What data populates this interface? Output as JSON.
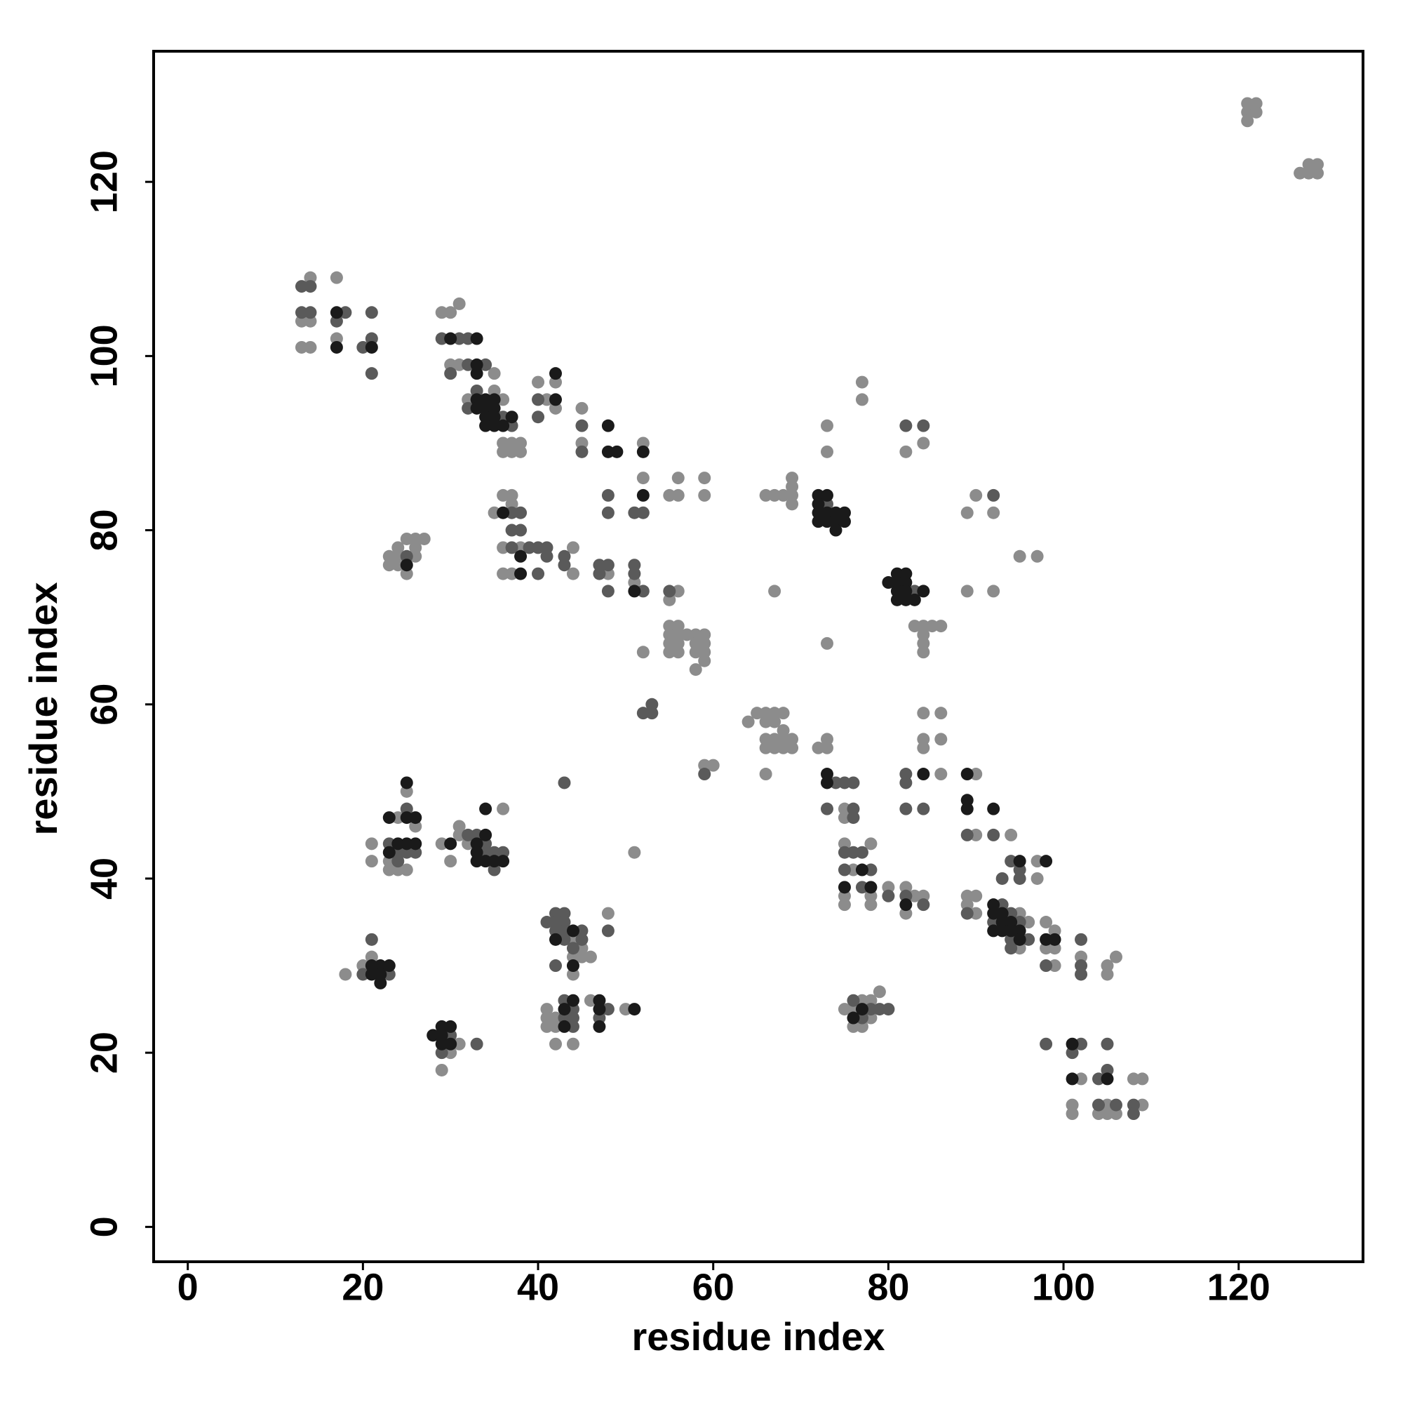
{
  "chart_data": {
    "type": "scatter",
    "x_label": "residue index",
    "y_label": "residue index",
    "xlim": [
      -3.9,
      134.2
    ],
    "ylim": [
      -4,
      135
    ],
    "xticks": [
      0,
      20,
      40,
      60,
      80,
      100,
      120
    ],
    "yticks": [
      0,
      20,
      40,
      60,
      80,
      100,
      120
    ],
    "grid": false,
    "series": [
      {
        "color": "#8c8c8c",
        "x": [
          121,
          121,
          122,
          122,
          121,
          127,
          128,
          128,
          129,
          129,
          14,
          13,
          14,
          13,
          14,
          17,
          17,
          29,
          30,
          31,
          30,
          31,
          35,
          35,
          32,
          36,
          36,
          37,
          38,
          36,
          37,
          38,
          40,
          42,
          41,
          42,
          45,
          45,
          52,
          52,
          55,
          56,
          56,
          59,
          59,
          36,
          37,
          37,
          35,
          36,
          38,
          44,
          36,
          37,
          44,
          48,
          51,
          56,
          55,
          52,
          24,
          24,
          25,
          23,
          23,
          25,
          26,
          26,
          26,
          27,
          24,
          55,
          56,
          55,
          56,
          55,
          56,
          55,
          56,
          57,
          58,
          59,
          58,
          59,
          58,
          59,
          59,
          58,
          59,
          60,
          64,
          65,
          66,
          67,
          68,
          66,
          67,
          66,
          67,
          68,
          69,
          66,
          67,
          68,
          69,
          66,
          68,
          66,
          67,
          68,
          69,
          69,
          69,
          69,
          67,
          73,
          73,
          73,
          77,
          77,
          83,
          84,
          85,
          86,
          84,
          84,
          84,
          82,
          84,
          89,
          90,
          92,
          89,
          92,
          95,
          97,
          84,
          86,
          84,
          84,
          86,
          86,
          72,
          73,
          73,
          75,
          75,
          90,
          90,
          94,
          97,
          97,
          75,
          78,
          76,
          75,
          78,
          75,
          78,
          80,
          82,
          82,
          83,
          84,
          89,
          90,
          89,
          90,
          95,
          96,
          95,
          98,
          99,
          98,
          99,
          99,
          102,
          105,
          106,
          105,
          102,
          101,
          101,
          105,
          104,
          105,
          106,
          108,
          109,
          109,
          76,
          77,
          78,
          79,
          76,
          77,
          78,
          75,
          21,
          20,
          18,
          31,
          30,
          29,
          44,
          45,
          44,
          45,
          46,
          44,
          48,
          41,
          41,
          41,
          42,
          42,
          42,
          44,
          46,
          50,
          21,
          21,
          23,
          23,
          24,
          24,
          25,
          25,
          26,
          29,
          30,
          31,
          31,
          32,
          36,
          51
        ],
        "values": [
          128,
          129,
          128,
          129,
          127,
          121,
          121,
          122,
          121,
          122,
          109,
          104,
          104,
          101,
          101,
          109,
          102,
          105,
          105,
          106,
          99,
          99,
          98,
          96,
          95,
          95,
          90,
          90,
          90,
          89,
          89,
          89,
          97,
          97,
          95,
          94,
          94,
          90,
          90,
          86,
          84,
          84,
          86,
          86,
          84,
          84,
          84,
          83,
          82,
          78,
          78,
          78,
          75,
          75,
          75,
          75,
          74,
          73,
          72,
          66,
          77,
          76,
          75,
          77,
          76,
          79,
          79,
          78,
          77,
          79,
          78,
          69,
          69,
          68,
          68,
          67,
          67,
          66,
          66,
          68,
          68,
          68,
          67,
          67,
          66,
          66,
          65,
          64,
          53,
          53,
          58,
          59,
          59,
          59,
          59,
          58,
          58,
          56,
          56,
          56,
          56,
          55,
          55,
          55,
          55,
          52,
          57,
          84,
          84,
          84,
          86,
          85,
          84,
          83,
          73,
          92,
          89,
          67,
          97,
          95,
          69,
          69,
          69,
          69,
          68,
          67,
          66,
          89,
          90,
          82,
          84,
          82,
          73,
          73,
          77,
          77,
          59,
          59,
          56,
          55,
          56,
          52,
          55,
          56,
          55,
          48,
          47,
          52,
          45,
          45,
          42,
          40,
          44,
          44,
          41,
          38,
          38,
          37,
          37,
          39,
          39,
          36,
          38,
          38,
          38,
          38,
          37,
          36,
          36,
          35,
          32,
          35,
          34,
          32,
          32,
          30,
          31,
          30,
          31,
          29,
          17,
          14,
          13,
          14,
          13,
          13,
          13,
          17,
          17,
          14,
          25,
          26,
          26,
          27,
          23,
          23,
          24,
          25,
          31,
          30,
          29,
          21,
          20,
          18,
          33,
          32,
          31,
          31,
          31,
          29,
          36,
          25,
          24,
          23,
          24,
          23,
          21,
          21,
          26,
          25,
          44,
          42,
          42,
          41,
          47,
          41,
          50,
          41,
          46,
          44,
          42,
          46,
          45,
          44,
          48,
          43
        ]
      },
      {
        "color": "#5a5a5a",
        "x": [
          13,
          14,
          13,
          14,
          17,
          18,
          20,
          21,
          21,
          21,
          29,
          31,
          32,
          32,
          30,
          34,
          33,
          32,
          36,
          37,
          40,
          40,
          45,
          45,
          48,
          48,
          51,
          52,
          37,
          38,
          37,
          38,
          37,
          39,
          40,
          41,
          41,
          43,
          40,
          43,
          47,
          48,
          47,
          48,
          51,
          51,
          52,
          55,
          25,
          53,
          52,
          53,
          59,
          73,
          83,
          82,
          84,
          92,
          82,
          82,
          82,
          84,
          74,
          75,
          76,
          73,
          76,
          76,
          89,
          92,
          93,
          94,
          95,
          95,
          75,
          76,
          77,
          75,
          78,
          77,
          80,
          82,
          84,
          89,
          93,
          94,
          92,
          95,
          94,
          96,
          94,
          98,
          102,
          102,
          102,
          98,
          102,
          101,
          104,
          105,
          105,
          104,
          106,
          108,
          108,
          76,
          77,
          78,
          79,
          80,
          21,
          20,
          23,
          30,
          29,
          33,
          41,
          42,
          43,
          42,
          43,
          45,
          42,
          43,
          43,
          45,
          44,
          42,
          48,
          43,
          44,
          43,
          44,
          44,
          48,
          47,
          23,
          24,
          24,
          25,
          25,
          26,
          32,
          33,
          34,
          34,
          35,
          36,
          35,
          43
        ],
        "values": [
          108,
          108,
          105,
          105,
          104,
          105,
          101,
          102,
          105,
          98,
          102,
          102,
          102,
          99,
          98,
          99,
          96,
          94,
          93,
          92,
          95,
          93,
          92,
          89,
          84,
          82,
          82,
          82,
          82,
          82,
          80,
          80,
          78,
          78,
          78,
          78,
          77,
          77,
          75,
          76,
          76,
          76,
          75,
          73,
          76,
          75,
          73,
          73,
          77,
          60,
          59,
          59,
          52,
          83,
          73,
          92,
          92,
          84,
          52,
          51,
          48,
          48,
          51,
          51,
          51,
          48,
          48,
          47,
          45,
          45,
          40,
          42,
          41,
          40,
          43,
          43,
          43,
          41,
          41,
          39,
          38,
          38,
          37,
          36,
          37,
          36,
          35,
          35,
          33,
          33,
          32,
          30,
          33,
          30,
          29,
          21,
          21,
          20,
          17,
          18,
          21,
          14,
          14,
          14,
          13,
          26,
          24,
          25,
          25,
          25,
          33,
          29,
          29,
          22,
          20,
          21,
          35,
          36,
          36,
          35,
          35,
          34,
          34,
          34,
          33,
          33,
          32,
          30,
          34,
          26,
          25,
          24,
          24,
          23,
          25,
          24,
          44,
          43,
          42,
          48,
          43,
          43,
          45,
          45,
          44,
          43,
          43,
          43,
          41,
          51
        ]
      },
      {
        "color": "#1a1a1a",
        "x": [
          17,
          17,
          21,
          30,
          33,
          33,
          33,
          33,
          34,
          35,
          33,
          34,
          35,
          34,
          35,
          37,
          34,
          35,
          36,
          42,
          42,
          48,
          48,
          49,
          52,
          52,
          36,
          38,
          38,
          51,
          25,
          72,
          72,
          73,
          72,
          73,
          74,
          72,
          73,
          74,
          75,
          75,
          74,
          80,
          81,
          82,
          81,
          82,
          81,
          82,
          84,
          81,
          82,
          83,
          84,
          73,
          73,
          89,
          89,
          89,
          92,
          95,
          98,
          77,
          75,
          78,
          82,
          92,
          92,
          93,
          93,
          94,
          92,
          93,
          94,
          95,
          95,
          98,
          99,
          101,
          101,
          105,
          77,
          76,
          21,
          22,
          23,
          21,
          22,
          22,
          28,
          29,
          30,
          29,
          29,
          30,
          44,
          42,
          44,
          43,
          44,
          43,
          47,
          47,
          47,
          51,
          23,
          23,
          24,
          25,
          25,
          25,
          26,
          26,
          30,
          34,
          33,
          33,
          33,
          34,
          35,
          36,
          34
        ],
        "values": [
          105,
          101,
          101,
          102,
          102,
          99,
          98,
          95,
          95,
          95,
          94,
          94,
          94,
          93,
          93,
          93,
          92,
          92,
          92,
          98,
          95,
          92,
          89,
          89,
          89,
          84,
          82,
          77,
          75,
          73,
          76,
          84,
          83,
          84,
          82,
          82,
          82,
          81,
          81,
          81,
          82,
          81,
          80,
          74,
          75,
          75,
          74,
          74,
          73,
          73,
          73,
          72,
          72,
          72,
          52,
          52,
          51,
          52,
          49,
          48,
          48,
          42,
          42,
          41,
          39,
          39,
          37,
          37,
          36,
          36,
          35,
          35,
          34,
          34,
          34,
          34,
          33,
          33,
          33,
          21,
          17,
          17,
          25,
          24,
          30,
          30,
          30,
          29,
          29,
          28,
          22,
          23,
          23,
          22,
          21,
          21,
          34,
          33,
          30,
          25,
          26,
          23,
          26,
          25,
          23,
          25,
          47,
          43,
          44,
          51,
          47,
          44,
          47,
          44,
          44,
          45,
          44,
          43,
          42,
          42,
          42,
          42,
          48
        ]
      }
    ]
  }
}
